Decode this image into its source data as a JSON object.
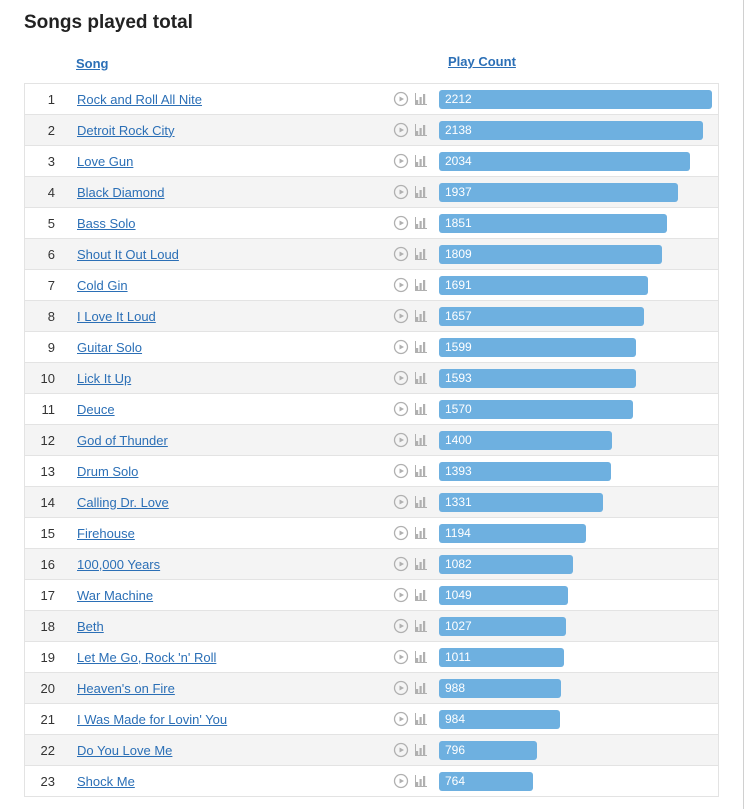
{
  "title": "Songs played total",
  "headers": {
    "song": "Song",
    "playCount": "Play Count"
  },
  "barColor": "#6eb0e0",
  "linkColor": "#2b6fb6",
  "maxCount": 2212,
  "songs": [
    {
      "rank": 1,
      "name": "Rock and Roll All Nite",
      "count": 2212
    },
    {
      "rank": 2,
      "name": "Detroit Rock City",
      "count": 2138
    },
    {
      "rank": 3,
      "name": "Love Gun",
      "count": 2034
    },
    {
      "rank": 4,
      "name": "Black Diamond",
      "count": 1937
    },
    {
      "rank": 5,
      "name": "Bass Solo",
      "count": 1851
    },
    {
      "rank": 6,
      "name": "Shout It Out Loud",
      "count": 1809
    },
    {
      "rank": 7,
      "name": "Cold Gin",
      "count": 1691
    },
    {
      "rank": 8,
      "name": "I Love It Loud",
      "count": 1657
    },
    {
      "rank": 9,
      "name": "Guitar Solo",
      "count": 1599
    },
    {
      "rank": 10,
      "name": "Lick It Up",
      "count": 1593
    },
    {
      "rank": 11,
      "name": "Deuce",
      "count": 1570
    },
    {
      "rank": 12,
      "name": "God of Thunder",
      "count": 1400
    },
    {
      "rank": 13,
      "name": "Drum Solo",
      "count": 1393
    },
    {
      "rank": 14,
      "name": "Calling Dr. Love",
      "count": 1331
    },
    {
      "rank": 15,
      "name": "Firehouse",
      "count": 1194
    },
    {
      "rank": 16,
      "name": "100,000 Years",
      "count": 1082
    },
    {
      "rank": 17,
      "name": "War Machine",
      "count": 1049
    },
    {
      "rank": 18,
      "name": "Beth",
      "count": 1027
    },
    {
      "rank": 19,
      "name": "Let Me Go, Rock 'n' Roll",
      "count": 1011
    },
    {
      "rank": 20,
      "name": "Heaven's on Fire",
      "count": 988
    },
    {
      "rank": 21,
      "name": "I Was Made for Lovin' You",
      "count": 984
    },
    {
      "rank": 22,
      "name": "Do You Love Me",
      "count": 796
    },
    {
      "rank": 23,
      "name": "Shock Me",
      "count": 764
    }
  ]
}
